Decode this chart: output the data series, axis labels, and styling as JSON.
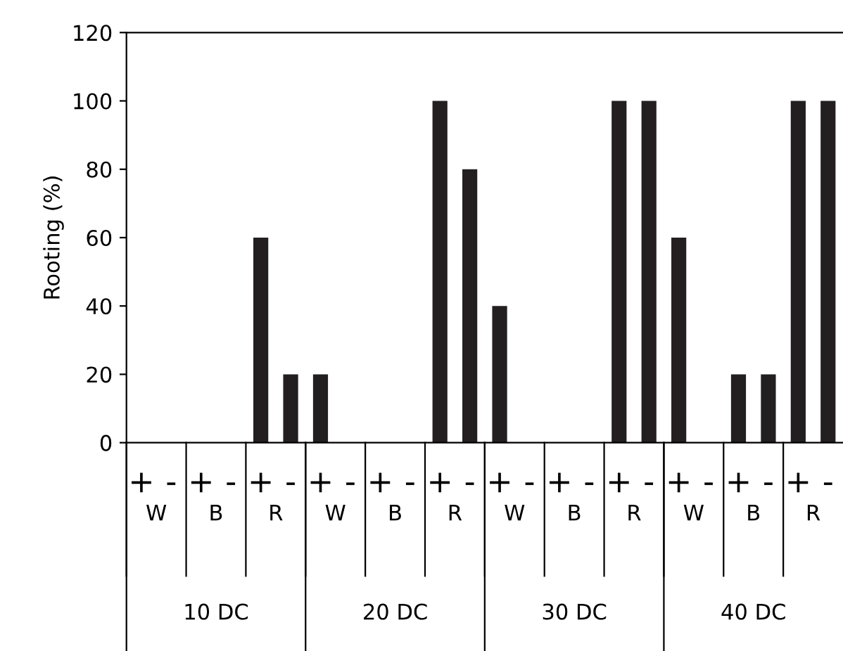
{
  "chart_data": {
    "type": "bar",
    "ylabel": "Rooting (%)",
    "categories": [
      "+",
      "-",
      "+",
      "-",
      "+",
      "-",
      "+",
      "-",
      "+",
      "-",
      "+",
      "-",
      "+",
      "-",
      "+",
      "-",
      "+",
      "-",
      "+",
      "-",
      "+",
      "-",
      "+",
      "-"
    ],
    "values": [
      0,
      0,
      0,
      0,
      60,
      20,
      20,
      0,
      0,
      0,
      100,
      80,
      40,
      0,
      0,
      0,
      100,
      100,
      60,
      0,
      20,
      20,
      100,
      100
    ],
    "color": "#231f20",
    "annotations": [
      "W",
      "B",
      "R",
      "W",
      "B",
      "R",
      "W",
      "B",
      "R",
      "W",
      "B",
      "R",
      "10 DC",
      "20 DC",
      "30 DC",
      "40 DC"
    ],
    "ylim": [
      0,
      120
    ],
    "yticks": [
      0,
      20,
      40,
      60,
      80,
      100,
      120
    ],
    "grid": false,
    "legend": false
  }
}
